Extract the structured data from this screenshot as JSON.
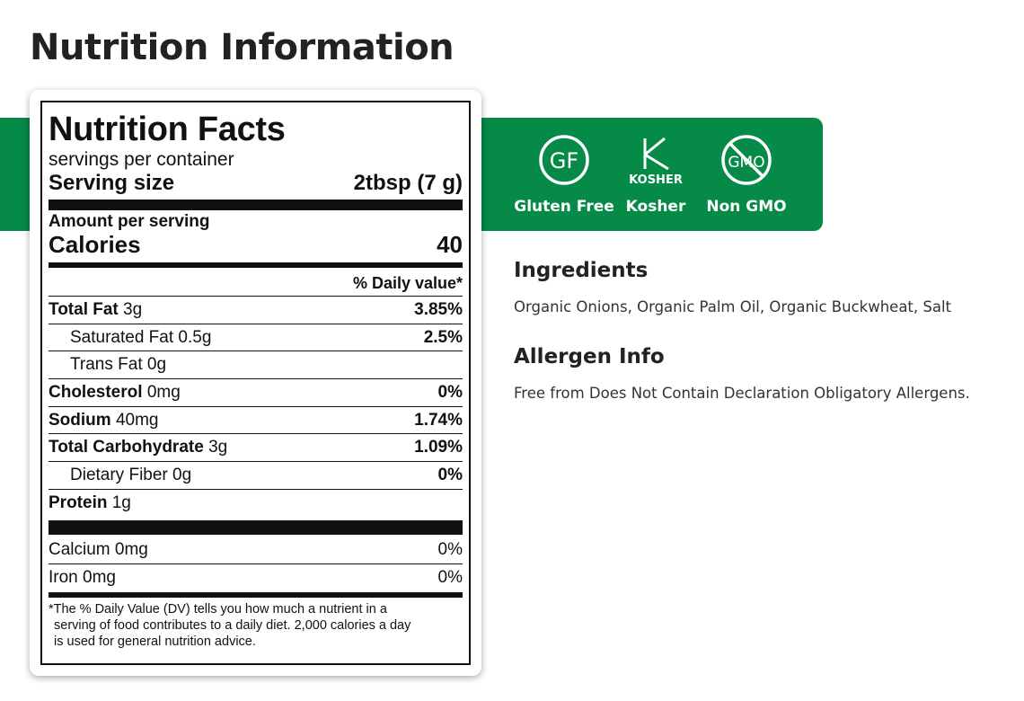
{
  "page": {
    "title": "Nutrition Information"
  },
  "colors": {
    "brand_green": "#058a47",
    "text_dark": "#222222",
    "label_ink": "#111111"
  },
  "nutrition_facts": {
    "title": "Nutrition Facts",
    "servings_per_container": "servings per container",
    "serving_size_label": "Serving size",
    "serving_size_value": "2tbsp (7 g)",
    "amount_per_serving": "Amount per serving",
    "calories_label": "Calories",
    "calories_value": "40",
    "daily_value_header": "% Daily value*",
    "nutrients": [
      {
        "name": "Total Fat",
        "amount": "3g",
        "dv": "3.85%"
      },
      {
        "name": "Saturated Fat",
        "amount": "0.5g",
        "dv": "2.5%"
      },
      {
        "name": "Trans Fat",
        "amount": "0g",
        "dv": ""
      },
      {
        "name": "Cholesterol",
        "amount": "0mg",
        "dv": "0%"
      },
      {
        "name": "Sodium",
        "amount": "40mg",
        "dv": "1.74%"
      },
      {
        "name": "Total Carbohydrate",
        "amount": "3g",
        "dv": "1.09%"
      },
      {
        "name": "Dietary Fiber",
        "amount": "0g",
        "dv": "0%"
      },
      {
        "name": "Protein",
        "amount": "1g",
        "dv": ""
      }
    ],
    "vitamins": [
      {
        "name": "Calcium 0mg",
        "dv": "0%"
      },
      {
        "name": "Iron 0mg",
        "dv": "0%"
      }
    ],
    "footnote_lines": [
      "*The % Daily Value (DV) tells you how much a nutrient in a",
      "serving of food contributes to a daily diet. 2,000 calories a day",
      "is used for general nutrition advice."
    ]
  },
  "badges": [
    {
      "icon": "gluten-free-icon",
      "icon_text": "GF",
      "label": "Gluten Free"
    },
    {
      "icon": "kosher-icon",
      "icon_text": "KOSHER",
      "label": "Kosher"
    },
    {
      "icon": "non-gmo-icon",
      "icon_text": "GMO",
      "label": "Non GMO"
    }
  ],
  "ingredients": {
    "title": "Ingredients",
    "text": "Organic Onions, Organic Palm Oil, Organic Buckwheat, Salt"
  },
  "allergen_info": {
    "title": "Allergen Info",
    "text": "Free from Does Not Contain Declaration Obligatory Allergens."
  }
}
